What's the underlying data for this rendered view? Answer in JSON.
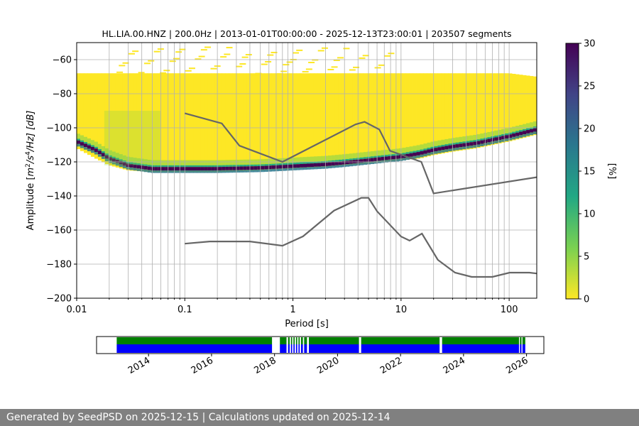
{
  "chart_data": {
    "type": "heatmap",
    "title": "HL.LIA.00.HNZ | 200.0Hz | 2013-01-01T00:00:00 - 2025-12-13T23:00:01 | 203507 segments",
    "xlabel": "Period [s]",
    "ylabel_parts": [
      "Amplitude [",
      "m",
      "2",
      "/",
      "s",
      "4",
      "/Hz] [dB]"
    ],
    "x_scale": "log",
    "xlim": [
      0.01,
      180
    ],
    "ylim": [
      -200,
      -50
    ],
    "x_ticks": [
      {
        "value": 0.01,
        "label": "0.01"
      },
      {
        "value": 0.1,
        "label": "0.1"
      },
      {
        "value": 1,
        "label": "1"
      },
      {
        "value": 10,
        "label": "10"
      },
      {
        "value": 100,
        "label": "100"
      }
    ],
    "y_ticks": [
      {
        "value": -60,
        "label": "−60"
      },
      {
        "value": -80,
        "label": "−80"
      },
      {
        "value": -100,
        "label": "−100"
      },
      {
        "value": -120,
        "label": "−120"
      },
      {
        "value": -140,
        "label": "−140"
      },
      {
        "value": -160,
        "label": "−160"
      },
      {
        "value": -180,
        "label": "−180"
      },
      {
        "value": -200,
        "label": "−200"
      }
    ],
    "grid": true,
    "colorbar": {
      "label": "[%]",
      "range": [
        0,
        30
      ],
      "ticks": [
        {
          "value": 0,
          "label": "0"
        },
        {
          "value": 5,
          "label": "5"
        },
        {
          "value": 10,
          "label": "10"
        },
        {
          "value": 15,
          "label": "15"
        },
        {
          "value": 20,
          "label": "20"
        },
        {
          "value": 25,
          "label": "25"
        },
        {
          "value": 30,
          "label": "30"
        }
      ],
      "colors": [
        "#fde725",
        "#7ad151",
        "#22a884",
        "#2a788e",
        "#414487",
        "#440154"
      ]
    },
    "psd_band": {
      "period": [
        0.01,
        0.015,
        0.02,
        0.03,
        0.05,
        0.1,
        0.2,
        0.5,
        1,
        2,
        3,
        5,
        7,
        10,
        15,
        20,
        30,
        50,
        100,
        180
      ],
      "upper_db": [
        -68,
        -68,
        -68,
        -68,
        -68,
        -68,
        -68,
        -68,
        -68,
        -68,
        -68,
        -68,
        -68,
        -68,
        -68,
        -68,
        -68,
        -68,
        -68,
        -70
      ],
      "lower_db": [
        -112,
        -118,
        -122,
        -125,
        -126,
        -126,
        -126,
        -125,
        -124,
        -123,
        -122,
        -121,
        -120,
        -119,
        -118,
        -116,
        -114,
        -112,
        -108,
        -104
      ],
      "mode_db": [
        -108,
        -113,
        -118,
        -122,
        -124,
        -124,
        -124,
        -123.5,
        -122.5,
        -121.5,
        -120.5,
        -119,
        -118,
        -117,
        -115,
        -113,
        -111,
        -109,
        -105,
        -101
      ]
    },
    "noise_models": [
      {
        "name": "NHNM",
        "period": [
          0.1,
          0.22,
          0.32,
          0.8,
          3.8,
          4.6,
          6.3,
          7.9,
          15.4,
          20,
          180
        ],
        "db": [
          -91.5,
          -97.4,
          -110.5,
          -120,
          -98,
          -96.5,
          -101,
          -113.5,
          -120,
          -138.5,
          -129
        ]
      },
      {
        "name": "NLNM",
        "period": [
          0.1,
          0.17,
          0.4,
          0.8,
          1.24,
          2.4,
          4.3,
          5,
          6,
          10,
          12,
          15.6,
          21.9,
          31.6,
          45,
          70,
          101,
          154,
          180
        ],
        "db": [
          -168,
          -166.7,
          -166.7,
          -169.2,
          -163.7,
          -148.6,
          -141.1,
          -141.1,
          -149,
          -163.8,
          -166.2,
          -162.1,
          -177.5,
          -185,
          -187.5,
          -187.5,
          -185,
          -185,
          -185.5
        ]
      }
    ],
    "timeline": {
      "x_start": 2012.35,
      "x_end": 2026.55,
      "data_start": 2012.99,
      "data_end": 2025.96,
      "tick_labels": [
        {
          "year": 2014,
          "label": "2014"
        },
        {
          "year": 2016,
          "label": "2016"
        },
        {
          "year": 2018,
          "label": "2018"
        },
        {
          "year": 2020,
          "label": "2020"
        },
        {
          "year": 2022,
          "label": "2022"
        },
        {
          "year": 2024,
          "label": "2024"
        },
        {
          "year": 2026,
          "label": "2026"
        }
      ],
      "gaps": [
        [
          2017.92,
          2018.17
        ],
        [
          2018.38,
          2018.43
        ],
        [
          2018.48,
          2018.52
        ],
        [
          2018.56,
          2018.6
        ],
        [
          2018.64,
          2018.68
        ],
        [
          2018.72,
          2018.76
        ],
        [
          2018.8,
          2018.84
        ],
        [
          2018.9,
          2018.94
        ],
        [
          2019.03,
          2019.09
        ],
        [
          2020.68,
          2020.75
        ],
        [
          2023.24,
          2023.32
        ],
        [
          2025.76,
          2025.79
        ],
        [
          2025.84,
          2025.87
        ]
      ],
      "top_color": "#008000",
      "bottom_color": "#0000ff"
    }
  },
  "footer": {
    "text": "Generated by SeedPSD on 2025-12-15 | Calculations updated on 2025-12-14"
  }
}
